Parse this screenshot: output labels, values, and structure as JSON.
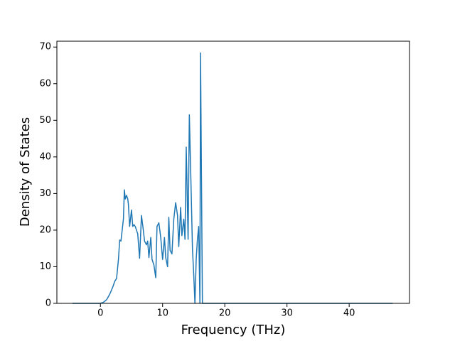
{
  "chart_data": {
    "type": "line",
    "x_label": "Frequency (THz)",
    "y_label": "Density of States",
    "x": [
      -4.5,
      0,
      0.5,
      1,
      1.5,
      2,
      2.3,
      2.6,
      2.9,
      3.1,
      3.3,
      3.5,
      3.7,
      3.85,
      4.0,
      4.2,
      4.4,
      4.5,
      4.7,
      5.0,
      5.2,
      5.4,
      5.6,
      5.8,
      6.0,
      6.3,
      6.6,
      6.9,
      7.1,
      7.4,
      7.6,
      7.8,
      8.1,
      8.3,
      8.6,
      8.9,
      9.1,
      9.4,
      9.7,
      10.0,
      10.3,
      10.5,
      10.8,
      11.0,
      11.2,
      11.5,
      11.8,
      12.1,
      12.4,
      12.6,
      12.9,
      13.1,
      13.4,
      13.6,
      13.8,
      14.1,
      14.3,
      14.6,
      14.8,
      15.0,
      15.2,
      15.4,
      15.6,
      15.8,
      16.0,
      16.1,
      16.4,
      47
    ],
    "series": [
      {
        "color": "#1f77b4",
        "values": [
          0,
          0,
          0.3,
          1,
          2.5,
          4.5,
          6,
          6.8,
          12,
          17.3,
          17,
          20,
          23,
          31,
          28.5,
          29.5,
          28.5,
          27,
          21,
          25.5,
          21,
          21.5,
          21,
          20,
          19,
          12.3,
          24,
          20,
          17,
          16,
          17,
          12.5,
          18,
          12,
          10.5,
          7,
          21,
          22,
          18,
          12,
          18,
          12.5,
          10,
          23.5,
          14.5,
          13.5,
          23,
          27.5,
          24,
          15.5,
          26.2,
          18.5,
          23,
          17.5,
          42.7,
          17.5,
          51.5,
          30,
          15,
          8,
          0,
          12,
          17.5,
          21,
          0,
          68.4,
          0,
          0
        ]
      }
    ],
    "xlim": [
      -7,
      49.7
    ],
    "xticks": [
      0,
      10,
      20,
      30,
      40
    ],
    "ylim": [
      0,
      71.6
    ],
    "yticks": [
      0,
      10,
      20,
      30,
      40,
      50,
      60,
      70
    ]
  }
}
